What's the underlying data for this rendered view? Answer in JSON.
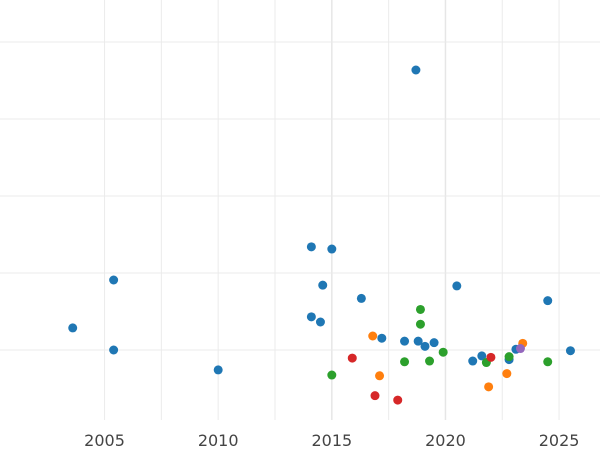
{
  "chart_data": {
    "type": "scatter",
    "title": "",
    "xlabel": "",
    "ylabel": "",
    "xlim": [
      2000.4,
      2026.8
    ],
    "ylim": [
      -0.3,
      5.4
    ],
    "x_ticks": [
      2005,
      2010,
      2015,
      2020,
      2025
    ],
    "grid": true,
    "colors": {
      "blue": "#1f77b4",
      "orange": "#ff7f0e",
      "green": "#2ca02c",
      "red": "#d62728",
      "purple": "#9467bd"
    },
    "series": [
      {
        "color": "blue",
        "points": [
          [
            2003.6,
            0.95
          ],
          [
            2005.4,
            1.6
          ],
          [
            2005.4,
            0.65
          ],
          [
            2010.0,
            0.38
          ],
          [
            2014.1,
            2.05
          ],
          [
            2014.1,
            1.1
          ],
          [
            2014.5,
            1.03
          ],
          [
            2014.6,
            1.53
          ],
          [
            2015.0,
            2.02
          ],
          [
            2016.3,
            1.35
          ],
          [
            2017.2,
            0.81
          ],
          [
            2018.2,
            0.77
          ],
          [
            2018.7,
            4.45
          ],
          [
            2018.8,
            0.77
          ],
          [
            2019.1,
            0.7
          ],
          [
            2019.5,
            0.75
          ],
          [
            2020.5,
            1.52
          ],
          [
            2021.2,
            0.5
          ],
          [
            2021.6,
            0.57
          ],
          [
            2022.8,
            0.52
          ],
          [
            2023.1,
            0.66
          ],
          [
            2024.5,
            1.32
          ],
          [
            2025.5,
            0.64
          ]
        ]
      },
      {
        "color": "orange",
        "points": [
          [
            2016.8,
            0.84
          ],
          [
            2017.1,
            0.3
          ],
          [
            2021.9,
            0.15
          ],
          [
            2022.7,
            0.33
          ],
          [
            2023.4,
            0.74
          ]
        ]
      },
      {
        "color": "green",
        "points": [
          [
            2015.0,
            0.31
          ],
          [
            2018.2,
            0.49
          ],
          [
            2018.9,
            1.2
          ],
          [
            2018.9,
            1.0
          ],
          [
            2019.3,
            0.5
          ],
          [
            2019.9,
            0.62
          ],
          [
            2021.8,
            0.48
          ],
          [
            2022.8,
            0.56
          ],
          [
            2024.5,
            0.49
          ]
        ]
      },
      {
        "color": "red",
        "points": [
          [
            2015.9,
            0.54
          ],
          [
            2016.9,
            0.03
          ],
          [
            2017.9,
            -0.03
          ],
          [
            2022.0,
            0.55
          ]
        ]
      },
      {
        "color": "purple",
        "points": [
          [
            2023.3,
            0.67
          ]
        ]
      }
    ]
  }
}
